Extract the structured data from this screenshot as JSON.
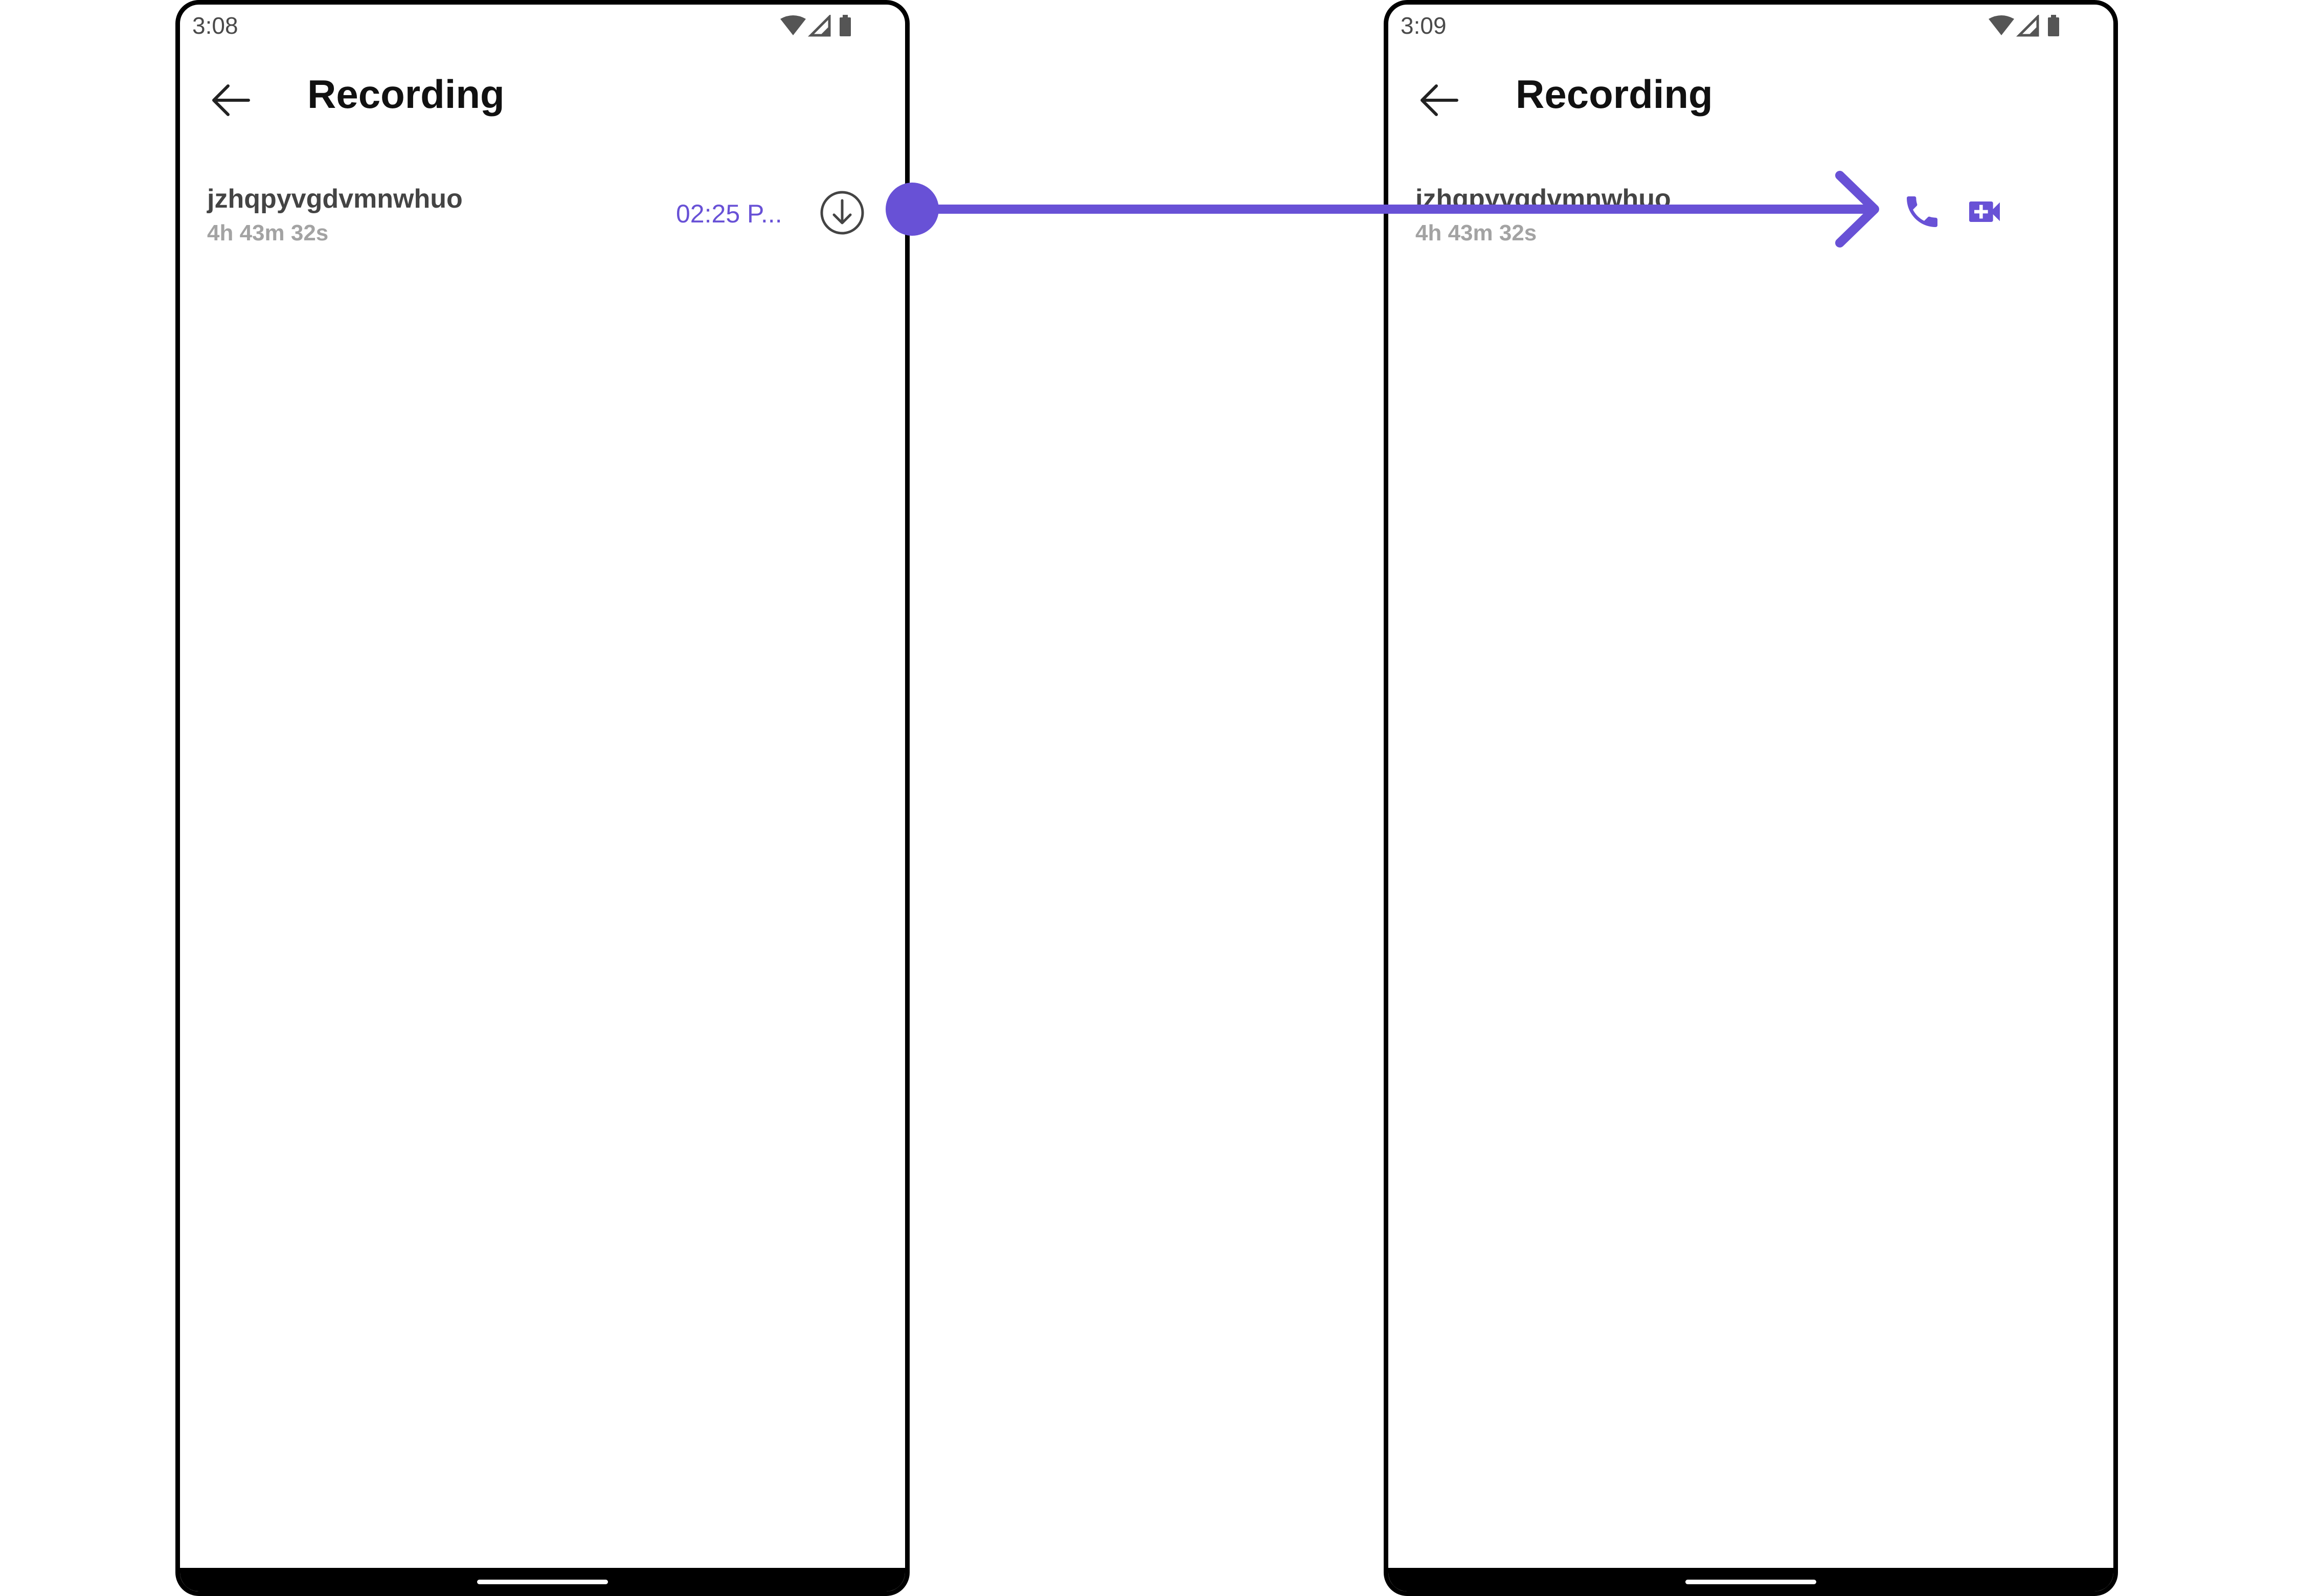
{
  "left_screen": {
    "status": {
      "time": "3:08"
    },
    "header": {
      "title": "Recording"
    },
    "recording": {
      "name": "jzhqpyvgdvmnwhuo",
      "duration": "4h 43m 32s",
      "time": "02:25 P..."
    }
  },
  "right_screen": {
    "status": {
      "time": "3:09"
    },
    "header": {
      "title": "Recording"
    },
    "recording": {
      "name": "jzhqpyvgdvmnwhuo",
      "duration": "4h 43m 32s"
    }
  },
  "icons": {
    "back": "arrow-left-icon",
    "download": "download-icon",
    "call": "phone-call-icon",
    "video": "video-call-icon",
    "wifi": "wifi-icon",
    "signal": "signal-icon",
    "battery": "battery-icon"
  },
  "colors": {
    "accent": "#6851d6",
    "title": "#111111",
    "name": "#444444",
    "duration": "#a3a3a3"
  }
}
